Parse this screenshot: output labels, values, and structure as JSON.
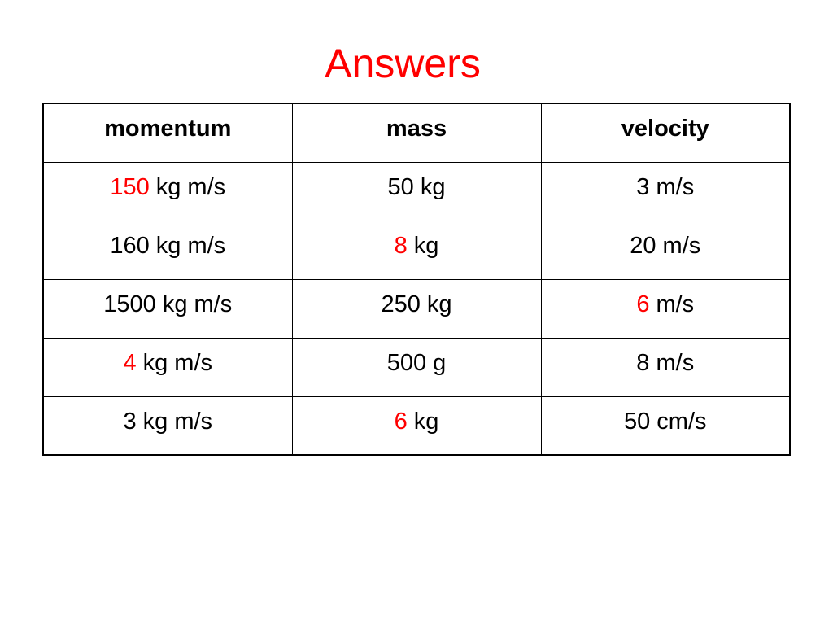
{
  "title": "Answers",
  "table": {
    "headers": [
      "momentum",
      "mass",
      "velocity"
    ],
    "rows": [
      [
        {
          "answer": "150",
          "unit": "kg m/s"
        },
        "50 kg",
        "3 m/s"
      ],
      [
        "160 kg m/s",
        {
          "answer": "8",
          "unit": "kg"
        },
        "20 m/s"
      ],
      [
        "1500 kg m/s",
        "250 kg",
        {
          "answer": "6",
          "unit": "m/s"
        }
      ],
      [
        {
          "answer": "4",
          "unit": "kg m/s"
        },
        "500 g",
        "8 m/s"
      ],
      [
        "3 kg m/s",
        {
          "answer": "6",
          "unit": "kg"
        },
        "50 cm/s"
      ]
    ]
  }
}
